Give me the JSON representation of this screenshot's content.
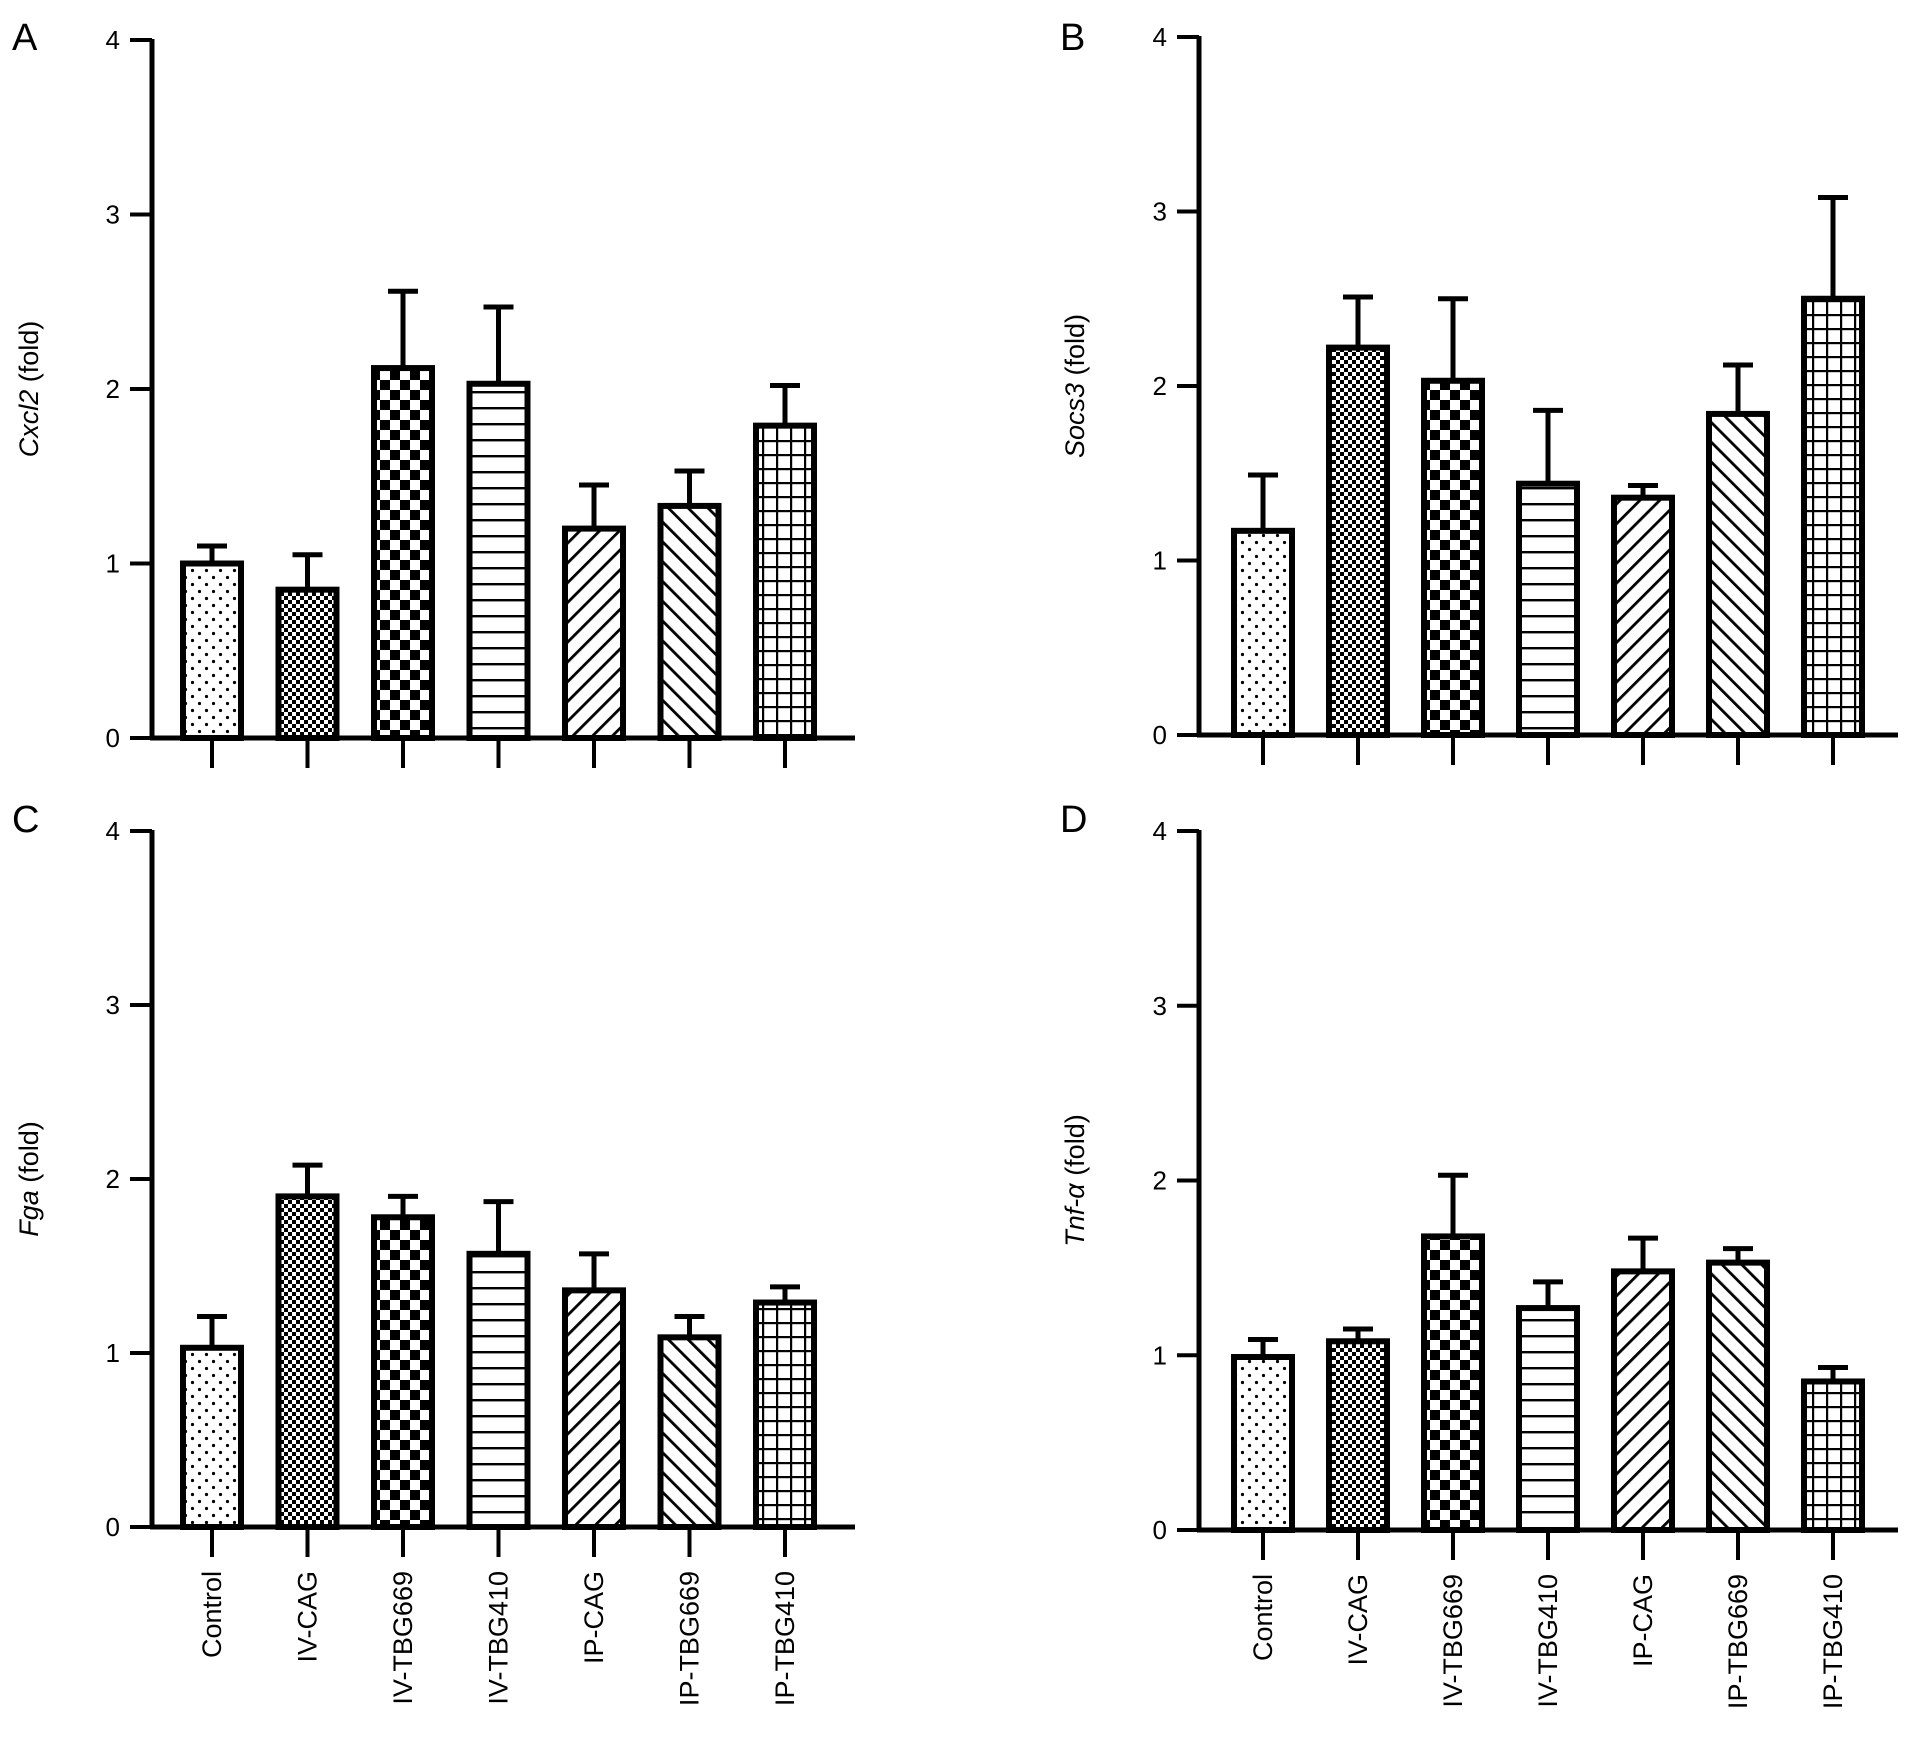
{
  "figure": {
    "categories": [
      "Control",
      "IV-CAG",
      "IV-TBG669",
      "IV-TBG410",
      "IP-CAG",
      "IP-TBG669",
      "IP-TBG410"
    ]
  },
  "chart_data": [
    {
      "panel": "A",
      "type": "bar",
      "ylabel_gene": "Cxcl2",
      "ylabel_unit": " (fold)",
      "ylim": [
        0,
        4
      ],
      "yticks": [
        "0",
        "1",
        "2",
        "3",
        "4"
      ],
      "categories": [
        "Control",
        "IV-CAG",
        "IV-TBG669",
        "IV-TBG410",
        "IP-CAG",
        "IP-TBG669",
        "IP-TBG410"
      ],
      "values": [
        1.0,
        0.85,
        2.12,
        2.03,
        1.2,
        1.33,
        1.79
      ],
      "errors": [
        0.1,
        0.2,
        0.44,
        0.44,
        0.25,
        0.2,
        0.23
      ],
      "patterns": [
        "dots",
        "fine-check",
        "check",
        "hlines",
        "diag-right",
        "diag-left",
        "grid"
      ],
      "show_category_labels": false
    },
    {
      "panel": "B",
      "type": "bar",
      "ylabel_gene": "Socs3",
      "ylabel_unit": " (fold)",
      "ylim": [
        0,
        4
      ],
      "yticks": [
        "0",
        "1",
        "2",
        "3",
        "4"
      ],
      "categories": [
        "Control",
        "IV-CAG",
        "IV-TBG669",
        "IV-TBG410",
        "IP-CAG",
        "IP-TBG669",
        "IP-TBG410"
      ],
      "values": [
        1.17,
        2.22,
        2.03,
        1.44,
        1.36,
        1.84,
        2.5
      ],
      "errors": [
        0.32,
        0.29,
        0.47,
        0.42,
        0.07,
        0.28,
        0.58
      ],
      "patterns": [
        "dots",
        "fine-check",
        "check",
        "hlines",
        "diag-right",
        "diag-left",
        "grid"
      ],
      "show_category_labels": false
    },
    {
      "panel": "C",
      "type": "bar",
      "ylabel_gene": "Fga",
      "ylabel_unit": " (fold)",
      "ylim": [
        0,
        4
      ],
      "yticks": [
        "0",
        "1",
        "2",
        "3",
        "4"
      ],
      "categories": [
        "Control",
        "IV-CAG",
        "IV-TBG669",
        "IV-TBG410",
        "IP-CAG",
        "IP-TBG669",
        "IP-TBG410"
      ],
      "values": [
        1.03,
        1.9,
        1.78,
        1.57,
        1.36,
        1.09,
        1.29
      ],
      "errors": [
        0.18,
        0.18,
        0.12,
        0.3,
        0.21,
        0.12,
        0.09
      ],
      "patterns": [
        "dots",
        "fine-check",
        "check",
        "hlines",
        "diag-right",
        "diag-left",
        "grid"
      ],
      "show_category_labels": true
    },
    {
      "panel": "D",
      "type": "bar",
      "ylabel_gene": "Tnf-α",
      "ylabel_unit": " (fold)",
      "ylim": [
        0,
        4
      ],
      "yticks": [
        "0",
        "1",
        "2",
        "3",
        "4"
      ],
      "categories": [
        "Control",
        "IV-CAG",
        "IV-TBG669",
        "IV-TBG410",
        "IP-CAG",
        "IP-TBG669",
        "IP-TBG410"
      ],
      "values": [
        0.99,
        1.08,
        1.68,
        1.27,
        1.48,
        1.53,
        0.85
      ],
      "errors": [
        0.1,
        0.07,
        0.35,
        0.15,
        0.19,
        0.08,
        0.08
      ],
      "patterns": [
        "dots",
        "fine-check",
        "check",
        "hlines",
        "diag-right",
        "diag-left",
        "grid"
      ],
      "show_category_labels": true
    }
  ]
}
